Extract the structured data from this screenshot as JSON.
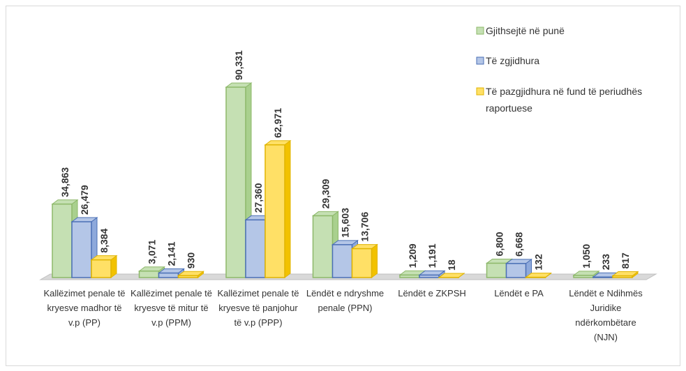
{
  "chart_data": {
    "type": "bar3d",
    "categories": [
      "Kallëzimet penale të kryesve madhor të v.p (PP)",
      "Kallëzimet penale të kryesve të mitur të v.p (PPM)",
      "Kallëzimet penale të kryesve të panjohur të v.p (PPP)",
      "Lëndët e ndryshme penale (PPN)",
      "Lëndët e ZKPSH",
      "Lëndët e PA",
      "Lëndët e Ndihmës Juridike ndërkombëtare (NJN)"
    ],
    "series": [
      {
        "name": "Gjithsejtë në punë",
        "color": "#c5e0b3",
        "values": [
          34863,
          3071,
          90331,
          29309,
          1209,
          6800,
          1050
        ],
        "value_labels": [
          "34,863",
          "3,071",
          "90,331",
          "29,309",
          "1,209",
          "6,800",
          "1,050"
        ]
      },
      {
        "name": "Të zgjidhura",
        "color": "#b4c6e7",
        "values": [
          26479,
          2141,
          27360,
          15603,
          1191,
          6668,
          233
        ],
        "value_labels": [
          "26,479",
          "2,141",
          "27,360",
          "15,603",
          "1,191",
          "6,668",
          "233"
        ]
      },
      {
        "name": "Të pazgjidhura në fund të periudhës raportuese",
        "color": "#ffe066",
        "values": [
          8384,
          930,
          62971,
          13706,
          18,
          132,
          817
        ],
        "value_labels": [
          "8,384",
          "930",
          "62,971",
          "13,706",
          "18",
          "132",
          "817"
        ]
      }
    ],
    "legend": "top-right"
  }
}
